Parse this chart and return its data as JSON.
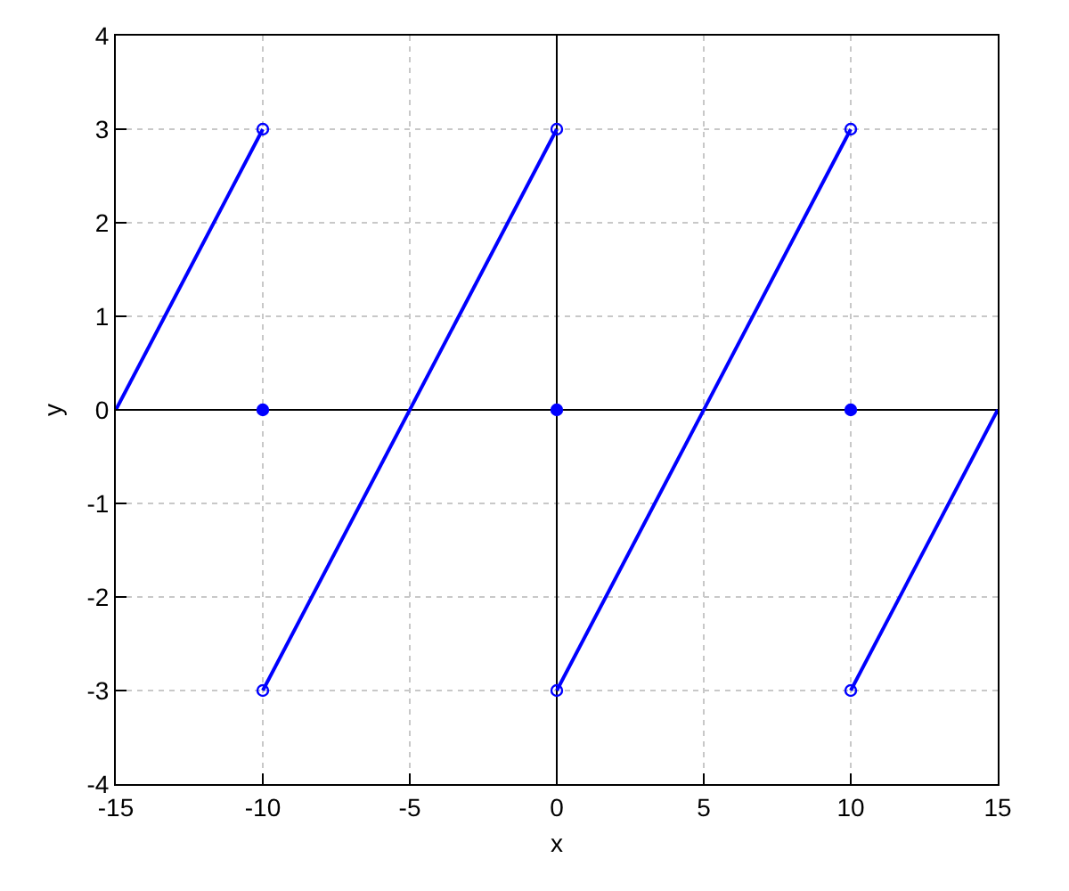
{
  "chart_data": {
    "type": "line",
    "xlabel": "x",
    "ylabel": "y",
    "series": [
      {
        "color": "#0000ff",
        "x": [
          -15,
          -10
        ],
        "values": [
          0,
          3
        ]
      },
      {
        "color": "#0000ff",
        "x": [
          -10,
          0
        ],
        "values": [
          -3,
          3
        ]
      },
      {
        "color": "#0000ff",
        "x": [
          0,
          10
        ],
        "values": [
          -3,
          3
        ]
      },
      {
        "color": "#0000ff",
        "x": [
          10,
          15
        ],
        "values": [
          -3,
          0
        ]
      },
      {
        "type": "scatter",
        "marker": "circle-open",
        "color": "#0000ff",
        "x": [
          -10,
          -10,
          0,
          0,
          10,
          10
        ],
        "values": [
          3,
          -3,
          3,
          -3,
          3,
          -3
        ]
      },
      {
        "type": "scatter",
        "marker": "circle",
        "color": "#0000ff",
        "x": [
          -10,
          0,
          10
        ],
        "values": [
          0,
          0,
          0
        ]
      }
    ],
    "xlim": [
      -15,
      15
    ],
    "xticks": [
      -15,
      -10,
      -5,
      0,
      5,
      10,
      15
    ],
    "ylim": [
      -4,
      4
    ],
    "yticks": [
      -4,
      -3,
      -2,
      -1,
      0,
      1,
      2,
      3,
      4
    ],
    "grid": true
  }
}
